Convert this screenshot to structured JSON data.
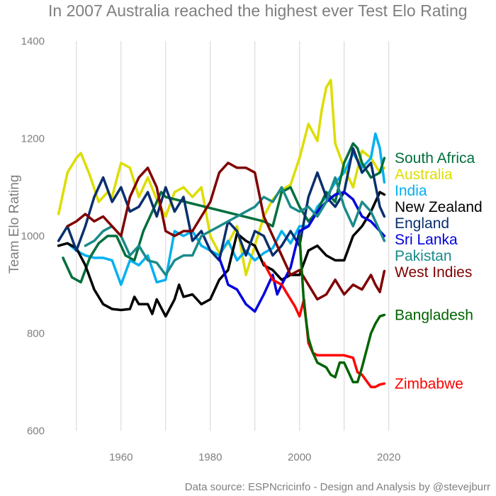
{
  "chart_data": {
    "type": "line",
    "title": "In 2007 Australia reached the highest ever Test Elo Rating",
    "caption": "Data source: ESPNcricinfo - Design and Analysis by @stevejburr",
    "xlabel": "",
    "ylabel": "Team Elo Rating",
    "xlim": [
      1944,
      2021
    ],
    "ylim": [
      600,
      1400
    ],
    "x_ticks": [
      1960,
      1980,
      2000,
      2020
    ],
    "x_grid": [
      1950,
      1960,
      1970,
      1980,
      1990,
      2000,
      2010,
      2020
    ],
    "y_ticks": [
      600,
      800,
      1000,
      1200,
      1400
    ],
    "grid": "vertical",
    "legend": "direct labels at right",
    "series": [
      {
        "name": "Australia",
        "color": "#dddd00",
        "label_value": 1140,
        "x": [
          1946,
          1948,
          1950,
          1951,
          1953,
          1955,
          1957,
          1958,
          1960,
          1962,
          1964,
          1966,
          1968,
          1970,
          1972,
          1974,
          1976,
          1978,
          1980,
          1982,
          1984,
          1986,
          1988,
          1990,
          1992,
          1994,
          1996,
          1998,
          2000,
          2002,
          2004,
          2005,
          2006,
          2007,
          2008,
          2010,
          2012,
          2014,
          2016,
          2018,
          2019
        ],
        "values": [
          1045,
          1130,
          1160,
          1170,
          1125,
          1070,
          1090,
          1080,
          1150,
          1140,
          1080,
          1120,
          1075,
          1040,
          1090,
          1100,
          1080,
          1100,
          1000,
          965,
          985,
          1020,
          920,
          980,
          1040,
          1075,
          1095,
          1105,
          1160,
          1230,
          1195,
          1260,
          1305,
          1320,
          1190,
          1140,
          1100,
          1175,
          1160,
          1130,
          1140
        ]
      },
      {
        "name": "India",
        "color": "#00b0f0",
        "label_value": 1110,
        "x": [
          1948,
          1950,
          1952,
          1954,
          1956,
          1958,
          1960,
          1962,
          1964,
          1966,
          1968,
          1970,
          1972,
          1974,
          1976,
          1978,
          1980,
          1982,
          1984,
          1986,
          1988,
          1990,
          1992,
          1994,
          1996,
          1998,
          2000,
          2002,
          2004,
          2006,
          2008,
          2010,
          2012,
          2014,
          2016,
          2017,
          2018,
          2019
        ],
        "values": [
          985,
          970,
          960,
          955,
          955,
          950,
          900,
          950,
          940,
          960,
          905,
          910,
          1010,
          1000,
          1010,
          980,
          970,
          960,
          990,
          950,
          970,
          950,
          965,
          975,
          1010,
          985,
          1020,
          1020,
          1060,
          1080,
          1110,
          1130,
          1170,
          1140,
          1160,
          1210,
          1180,
          1110
        ]
      },
      {
        "name": "South Africa",
        "color": "#006f3c",
        "label_value": 1160,
        "x": [
          1947,
          1949,
          1951,
          1953,
          1955,
          1957,
          1959,
          1961,
          1963,
          1965,
          1967,
          1969,
          1970,
          1992,
          1994,
          1996,
          1998,
          2000,
          2002,
          2004,
          2006,
          2008,
          2010,
          2012,
          2013,
          2014,
          2016,
          2018,
          2019
        ],
        "values": [
          955,
          915,
          905,
          955,
          985,
          1000,
          1000,
          960,
          950,
          1010,
          1050,
          1090,
          1080,
          1030,
          1020,
          1090,
          1100,
          1060,
          1030,
          1050,
          1090,
          1070,
          1150,
          1190,
          1180,
          1150,
          1120,
          1130,
          1160
        ]
      },
      {
        "name": "New Zealand",
        "color": "#000000",
        "label_value": 1085,
        "x": [
          1946,
          1948,
          1950,
          1952,
          1954,
          1956,
          1958,
          1960,
          1962,
          1963,
          1964,
          1966,
          1967,
          1968,
          1970,
          1972,
          1973,
          1974,
          1976,
          1978,
          1980,
          1982,
          1984,
          1986,
          1988,
          1990,
          1992,
          1994,
          1996,
          1998,
          2000,
          2002,
          2004,
          2006,
          2008,
          2010,
          2012,
          2014,
          2016,
          2018,
          2019
        ],
        "values": [
          980,
          985,
          975,
          940,
          890,
          860,
          850,
          848,
          850,
          875,
          860,
          860,
          840,
          870,
          835,
          870,
          900,
          875,
          880,
          860,
          870,
          910,
          930,
          1005,
          990,
          980,
          940,
          930,
          910,
          920,
          920,
          970,
          980,
          960,
          950,
          950,
          1000,
          1020,
          1050,
          1090,
          1085
        ]
      },
      {
        "name": "England",
        "color": "#0a2f6e",
        "label_value": 1042,
        "x": [
          1946,
          1948,
          1950,
          1952,
          1954,
          1956,
          1958,
          1960,
          1962,
          1964,
          1966,
          1968,
          1970,
          1972,
          1974,
          1976,
          1978,
          1980,
          1982,
          1984,
          1986,
          1988,
          1990,
          1992,
          1994,
          1996,
          1998,
          2000,
          2002,
          2004,
          2006,
          2008,
          2010,
          2012,
          2014,
          2016,
          2018,
          2019
        ],
        "values": [
          990,
          1020,
          970,
          1020,
          1080,
          1120,
          1070,
          1100,
          1050,
          1060,
          1090,
          1040,
          1100,
          1050,
          1080,
          990,
          1010,
          970,
          950,
          1030,
          1010,
          960,
          1010,
          1000,
          960,
          980,
          1010,
          980,
          1080,
          1130,
          1080,
          1060,
          1090,
          1180,
          1130,
          1150,
          1060,
          1040
        ]
      },
      {
        "name": "Sri Lanka",
        "color": "#0000dd",
        "label_value": 1000,
        "x": [
          1982,
          1983,
          1984,
          1986,
          1988,
          1990,
          1992,
          1994,
          1995,
          1996,
          1998,
          2000,
          2002,
          2004,
          2006,
          2008,
          2010,
          2012,
          2014,
          2016,
          2018,
          2019
        ],
        "values": [
          955,
          930,
          900,
          890,
          860,
          845,
          880,
          920,
          880,
          900,
          935,
          1010,
          1020,
          1050,
          1070,
          1085,
          1090,
          1075,
          1040,
          1030,
          1010,
          1000
        ]
      },
      {
        "name": "Pakistan",
        "color": "#1b8a8a",
        "label_value": 990,
        "x": [
          1952,
          1954,
          1956,
          1958,
          1960,
          1962,
          1964,
          1966,
          1968,
          1970,
          1972,
          1974,
          1976,
          1978,
          1980,
          1982,
          1984,
          1986,
          1988,
          1990,
          1992,
          1994,
          1996,
          1998,
          2000,
          2002,
          2004,
          2006,
          2008,
          2010,
          2012,
          2014,
          2016,
          2018,
          2019
        ],
        "values": [
          980,
          990,
          1010,
          1020,
          1000,
          960,
          980,
          950,
          945,
          920,
          950,
          960,
          960,
          1000,
          1010,
          1020,
          1030,
          1040,
          1050,
          1060,
          1080,
          1070,
          1100,
          1060,
          1050,
          1060,
          1040,
          1070,
          1120,
          1060,
          1020,
          1070,
          1050,
          1010,
          990
        ]
      },
      {
        "name": "West Indies",
        "color": "#800000",
        "label_value": 928,
        "x": [
          1948,
          1950,
          1952,
          1954,
          1956,
          1958,
          1960,
          1962,
          1964,
          1966,
          1968,
          1970,
          1972,
          1974,
          1976,
          1978,
          1980,
          1982,
          1984,
          1986,
          1988,
          1990,
          1992,
          1994,
          1996,
          1998,
          2000,
          2002,
          2004,
          2006,
          2008,
          2010,
          2012,
          2014,
          2016,
          2017,
          2018,
          2019
        ],
        "values": [
          1020,
          1030,
          1045,
          1030,
          1040,
          1020,
          1000,
          1080,
          1120,
          1140,
          1100,
          1010,
          1000,
          1010,
          1010,
          1040,
          1070,
          1130,
          1150,
          1140,
          1140,
          1130,
          1040,
          1000,
          960,
          920,
          930,
          900,
          870,
          880,
          910,
          880,
          900,
          890,
          920,
          900,
          885,
          928
        ]
      },
      {
        "name": "Zimbabwe",
        "color": "#ff0000",
        "label_value": 697,
        "x": [
          1992,
          1994,
          1996,
          1998,
          1999,
          2000,
          2001,
          2002,
          2003,
          2004,
          2006,
          2008,
          2010,
          2012,
          2013,
          2014,
          2016,
          2017,
          2018,
          2019
        ],
        "values": [
          945,
          910,
          900,
          870,
          855,
          835,
          870,
          780,
          760,
          755,
          755,
          755,
          755,
          750,
          720,
          715,
          690,
          690,
          695,
          697
        ]
      },
      {
        "name": "Bangladesh",
        "color": "#006400",
        "label_value": 838,
        "x": [
          2000,
          2001,
          2002,
          2003,
          2004,
          2006,
          2007,
          2008,
          2009,
          2010,
          2011,
          2012,
          2013,
          2014,
          2016,
          2017,
          2018,
          2019
        ],
        "values": [
          1000,
          860,
          790,
          760,
          740,
          730,
          715,
          710,
          740,
          740,
          720,
          700,
          700,
          730,
          800,
          820,
          835,
          838
        ]
      }
    ]
  }
}
